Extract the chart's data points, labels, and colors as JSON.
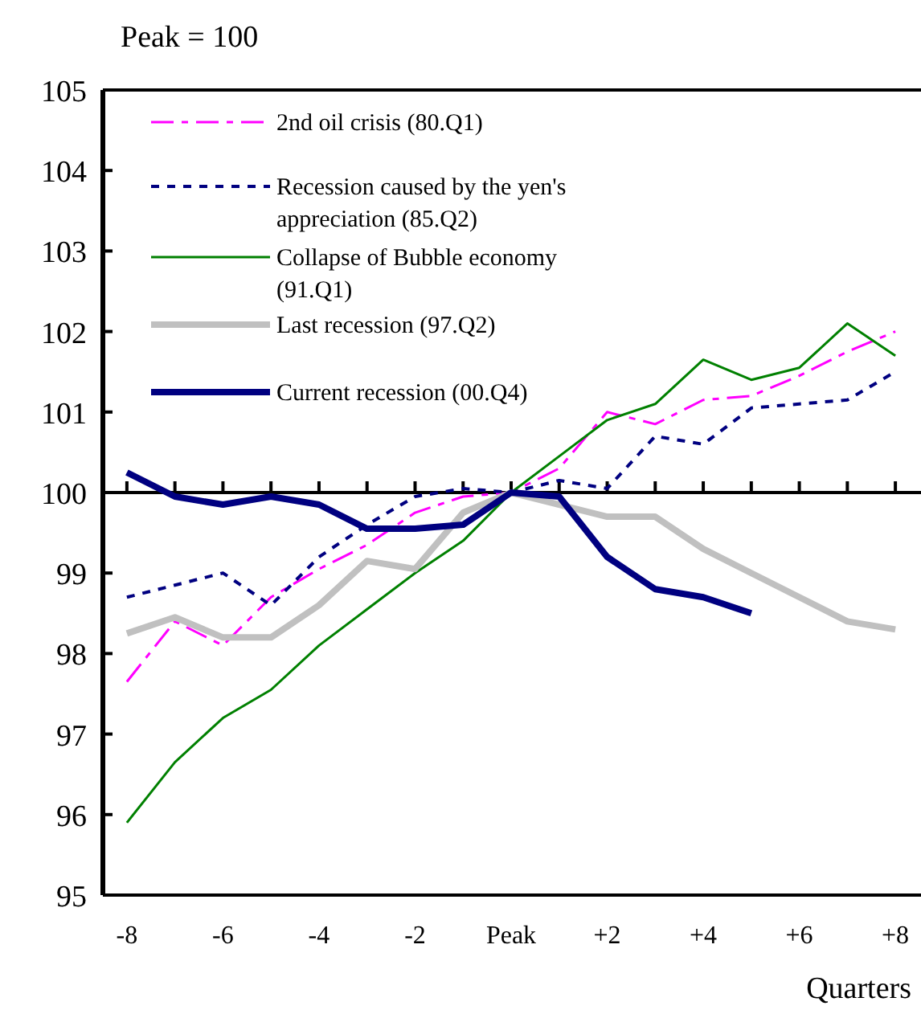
{
  "chart_data": {
    "type": "line",
    "ylabel": "Peak  = 100",
    "xlabel": "Quarters",
    "x": [
      -8,
      -7,
      -6,
      -5,
      -4,
      -3,
      -2,
      -1,
      0,
      1,
      2,
      3,
      4,
      5,
      6,
      7,
      8
    ],
    "xlim": [
      -8.5,
      8.5
    ],
    "xticks": [
      -8,
      -6,
      -4,
      -2,
      {
        "value": 0,
        "label": "Peak"
      },
      {
        "value": 2,
        "label": "+2"
      },
      {
        "value": 4,
        "label": "+4"
      },
      {
        "value": 6,
        "label": "+6"
      },
      {
        "value": 8,
        "label": "+8"
      }
    ],
    "ylim": [
      95,
      105
    ],
    "yticks": [
      95,
      96,
      97,
      98,
      99,
      100,
      101,
      102,
      103,
      104,
      105
    ],
    "legend": "top left",
    "marker": "none",
    "ref_lines": [
      {
        "axis": "y",
        "value": 100
      }
    ],
    "series": [
      {
        "name": "2nd oil crisis (80.Q1)",
        "color": "#ff00ff",
        "line_style": "dashed",
        "values": [
          97.65,
          98.4,
          98.1,
          98.7,
          99.05,
          99.35,
          99.75,
          99.95,
          100,
          100.3,
          101.0,
          100.85,
          101.15,
          101.2,
          101.45,
          101.75,
          102.0
        ]
      },
      {
        "name": "Recession caused by the yen's appreciation (85.Q2)",
        "color": "#000080",
        "line_style": "dotted",
        "values": [
          98.7,
          98.85,
          99.0,
          98.6,
          99.2,
          99.6,
          99.95,
          100.05,
          100,
          100.15,
          100.05,
          100.7,
          100.6,
          101.05,
          101.1,
          101.15,
          101.5
        ]
      },
      {
        "name": "Collapse of Bubble economy (91.Q1)",
        "color": "#008000",
        "line_style": "solid",
        "values": [
          95.9,
          96.65,
          97.2,
          97.55,
          98.1,
          98.55,
          99.0,
          99.4,
          100,
          100.45,
          100.9,
          101.1,
          101.65,
          101.4,
          101.55,
          102.1,
          101.7
        ]
      },
      {
        "name": "Last recession (97.Q2)",
        "color": "#c0c0c0",
        "line_style": "solid",
        "values": [
          98.25,
          98.45,
          98.2,
          98.2,
          98.6,
          99.15,
          99.05,
          99.75,
          100,
          99.85,
          99.7,
          99.7,
          99.3,
          99.0,
          98.7,
          98.4,
          98.3
        ]
      },
      {
        "name": "Current recession (00.Q4)",
        "color": "#000080",
        "line_style": "solid",
        "values": [
          100.25,
          99.95,
          99.85,
          99.95,
          99.85,
          99.55,
          99.55,
          99.6,
          100,
          99.95,
          99.2,
          98.8,
          98.7,
          98.5,
          null,
          null,
          null
        ]
      }
    ]
  }
}
